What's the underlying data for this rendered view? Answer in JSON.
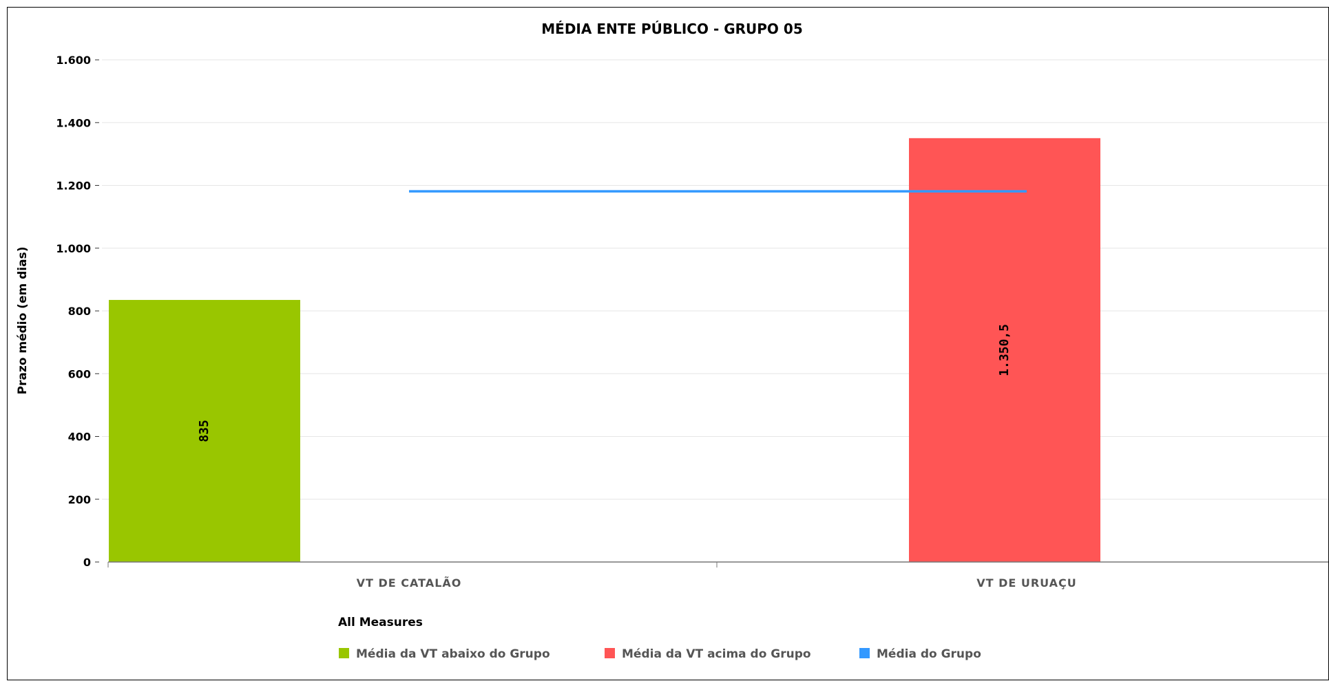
{
  "chart_data": {
    "type": "bar",
    "title": "MÉDIA ENTE PÚBLICO - GRUPO 05",
    "xlabel": "",
    "ylabel": "Prazo médio (em dias)",
    "ylim": [
      0,
      1600
    ],
    "ytick_values": [
      0,
      200,
      400,
      600,
      800,
      1000,
      1200,
      1400,
      1600
    ],
    "ytick_labels": [
      "0",
      "200",
      "400",
      "600",
      "800",
      "1.000",
      "1.200",
      "1.400",
      "1.600"
    ],
    "categories": [
      "VT DE CATALÃO",
      "VT DE URUAÇU"
    ],
    "series": [
      {
        "name": "Média da VT abaixo do Grupo",
        "color": "#99c600",
        "values": [
          835,
          null
        ],
        "labels": [
          "835",
          null
        ]
      },
      {
        "name": "Média da VT acima do Grupo",
        "color": "#ff5555",
        "values": [
          null,
          1350.5
        ],
        "labels": [
          null,
          "1.350,5"
        ]
      },
      {
        "name": "Média do Grupo",
        "color": "#3399ff",
        "type": "line",
        "values": [
          1181,
          1181
        ]
      }
    ],
    "grid": true,
    "legend": {
      "title": "All Measures",
      "placement": "bottom-center"
    }
  }
}
